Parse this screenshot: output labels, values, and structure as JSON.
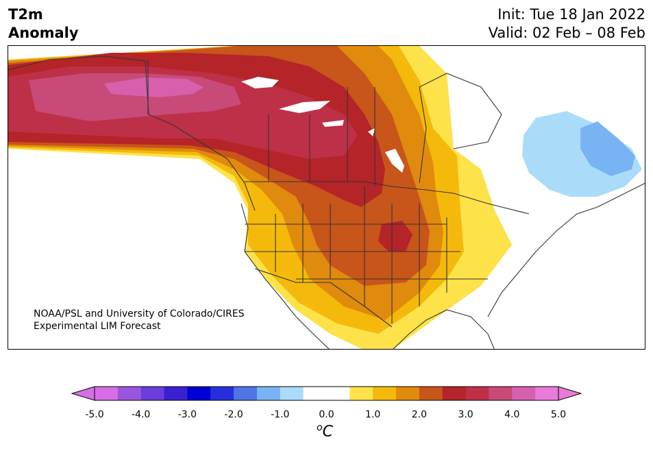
{
  "title": {
    "left_line1": "T2m",
    "left_line2": "Anomaly",
    "right_line1": "Init: Tue 18 Jan 2022",
    "right_line2": "Valid: 02 Feb – 08 Feb"
  },
  "credit": {
    "line1": "NOAA/PSL and University of Colorado/CIRES",
    "line2": "Experimental LIM Forecast"
  },
  "colorbar": {
    "unit_base": "C",
    "unit_sup": "o",
    "ticks": [
      "-5.0",
      "-4.0",
      "-3.0",
      "-2.0",
      "-1.0",
      "0.0",
      "1.0",
      "2.0",
      "3.0",
      "4.0",
      "5.0"
    ],
    "colors": [
      "#d76ee6",
      "#9a55de",
      "#6a3ddc",
      "#3b20d0",
      "#0000d4",
      "#2530dc",
      "#4f74e6",
      "#78b4f4",
      "#aadcfa",
      "#ffffff",
      "#ffffff",
      "#fde24a",
      "#f4b90a",
      "#e08a0e",
      "#c8551a",
      "#b42428",
      "#bd3048",
      "#c84a78",
      "#d660ac",
      "#e87ad8"
    ]
  },
  "map": {
    "region": "North America",
    "colors": {
      "anom_05_10": "#fde24a",
      "anom_10_15": "#f4b90a",
      "anom_15_20": "#e08a0e",
      "anom_20_25": "#c8551a",
      "anom_25_30": "#b42428",
      "anom_30_35": "#bd3048",
      "anom_35_40": "#c84a78",
      "anom_40_45": "#d660ac",
      "anom_neg_05_10": "#aadcfa",
      "anom_neg_10_15": "#78b4f4"
    }
  }
}
